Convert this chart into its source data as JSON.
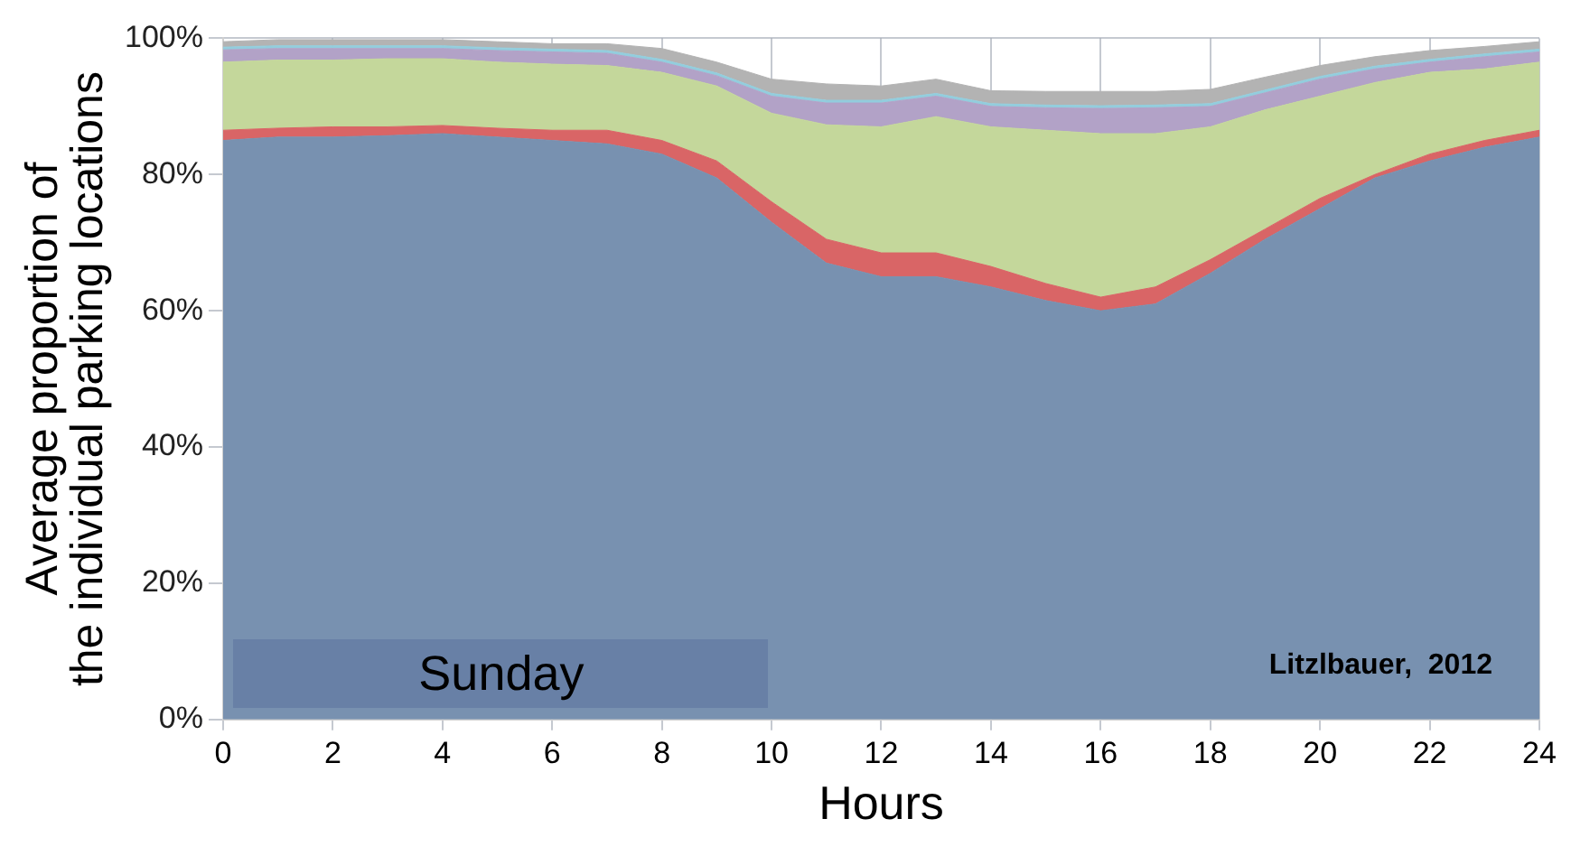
{
  "chart_data": {
    "type": "area",
    "stacked": true,
    "xlabel": "Hours",
    "ylabel": "Average proportion of the individual parking locations",
    "x": [
      0,
      1,
      2,
      3,
      4,
      5,
      6,
      7,
      8,
      9,
      10,
      11,
      12,
      13,
      14,
      15,
      16,
      17,
      18,
      19,
      20,
      21,
      22,
      23,
      24
    ],
    "xlim": [
      0,
      24
    ],
    "xticks": [
      0,
      2,
      4,
      6,
      8,
      10,
      12,
      14,
      16,
      18,
      20,
      22,
      24
    ],
    "ylim": [
      0,
      100
    ],
    "yticks": [
      {
        "value": 0,
        "label": "0%"
      },
      {
        "value": 20,
        "label": "20%"
      },
      {
        "value": 40,
        "label": "40%"
      },
      {
        "value": 60,
        "label": "60%"
      },
      {
        "value": 80,
        "label": "80%"
      },
      {
        "value": 100,
        "label": "100%"
      }
    ],
    "grid": true,
    "legend": false,
    "marker": "none",
    "series": [
      {
        "color": "#7891b0",
        "values": [
          85,
          85.5,
          85.5,
          85.7,
          86,
          85.5,
          85,
          84.5,
          83,
          79.5,
          73,
          67,
          65,
          65,
          63.5,
          61.5,
          60,
          61,
          65.5,
          70.5,
          75,
          79.5,
          82,
          84,
          85.5
        ]
      },
      {
        "color": "#d96566",
        "values": [
          1.5,
          1.3,
          1.5,
          1.3,
          1.2,
          1.3,
          1.5,
          2,
          2,
          2.5,
          3,
          3.5,
          3.5,
          3.5,
          3,
          2.5,
          2,
          2.5,
          2,
          1.5,
          1.5,
          0.5,
          1,
          1,
          1
        ]
      },
      {
        "color": "#c4d79b",
        "values": [
          10,
          10,
          9.8,
          10,
          9.8,
          9.7,
          9.7,
          9.5,
          10,
          11,
          13,
          16.8,
          18.5,
          20,
          20.5,
          22.5,
          24,
          22.5,
          19.5,
          17.5,
          15,
          13.5,
          12,
          10.5,
          10
        ]
      },
      {
        "color": "#b2a2c7",
        "values": [
          1.8,
          1.7,
          1.7,
          1.5,
          1.5,
          1.7,
          1.8,
          1.8,
          1.5,
          1.5,
          2.5,
          3.2,
          3.5,
          3,
          3,
          3.3,
          3.7,
          3.8,
          3,
          2.5,
          2.5,
          2,
          1.5,
          1.8,
          1.5
        ]
      },
      {
        "color": "#93cddd",
        "values": [
          0.4,
          0.4,
          0.4,
          0.4,
          0.4,
          0.4,
          0.4,
          0.4,
          0.4,
          0.4,
          0.4,
          0.4,
          0.4,
          0.4,
          0.4,
          0.4,
          0.4,
          0.4,
          0.4,
          0.4,
          0.4,
          0.4,
          0.4,
          0.4,
          0.4
        ]
      },
      {
        "color": "#b3b3b3",
        "values": [
          0.8,
          0.9,
          0.9,
          0.9,
          0.9,
          0.9,
          0.8,
          1,
          1.6,
          1.6,
          2.1,
          2.4,
          2.1,
          2.1,
          1.9,
          2,
          2.1,
          2,
          2.1,
          1.9,
          1.6,
          1.4,
          1.3,
          1.1,
          1.1
        ]
      }
    ],
    "annotations": [
      "Sunday",
      "Litzlbauer,  2012"
    ]
  }
}
